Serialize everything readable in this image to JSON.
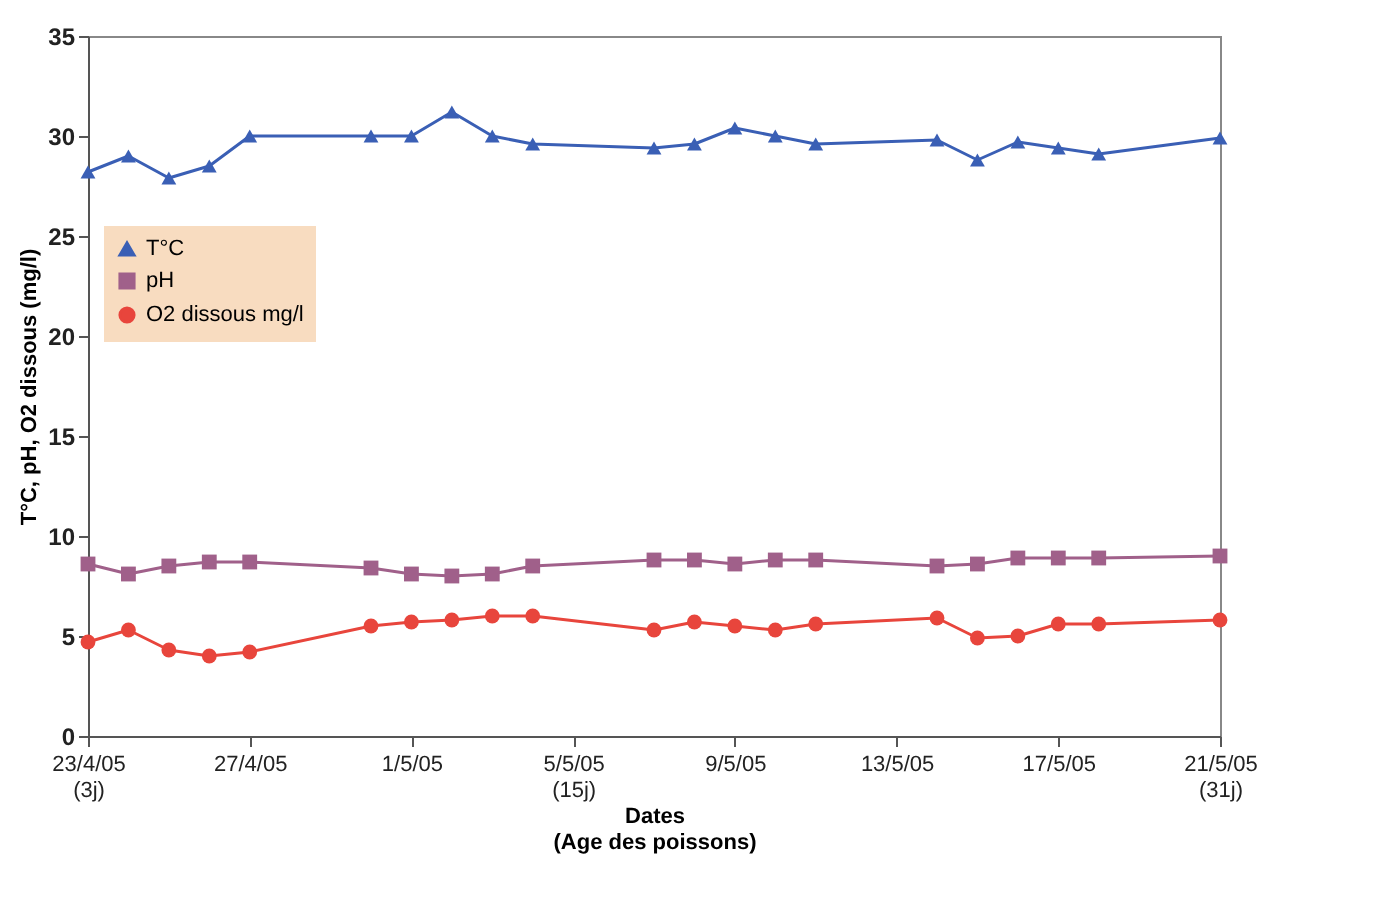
{
  "chart_data": {
    "type": "line",
    "xlabel": "Dates\n(Age des poissons)",
    "ylabel": "T°C, pH, O2 dissous (mg/l)",
    "x": [
      "--04-23",
      "--04-24",
      "--04-25",
      "--04-26",
      "--04-27",
      "--04-30",
      "--05-01",
      "--05-02",
      "--05-03",
      "--05-04",
      "--05-07",
      "--05-08",
      "--05-09",
      "--05-10",
      "--05-11",
      "--05-14",
      "--05-15",
      "--05-16",
      "--05-17",
      "--05-18",
      "--05-21"
    ],
    "series": [
      {
        "name": "T°C",
        "color": "#3a5fb5",
        "marker": "triangle",
        "values": [
          28.2,
          29,
          27.9,
          28.5,
          30,
          30,
          30,
          31.2,
          30,
          29.6,
          29.4,
          29.6,
          30.4,
          30,
          29.6,
          29.8,
          28.8,
          29.7,
          29.4,
          29.1,
          29.9
        ]
      },
      {
        "name": "pH",
        "color": "#a0608a",
        "marker": "square",
        "values": [
          8.6,
          8.1,
          8.5,
          8.7,
          8.7,
          8.4,
          8.1,
          8,
          8.1,
          8.5,
          8.8,
          8.8,
          8.6,
          8.8,
          8.8,
          8.5,
          8.6,
          8.9,
          8.9,
          8.9,
          9
        ]
      },
      {
        "name": "O2 dissous mg/l",
        "color": "#e8453c",
        "marker": "circle",
        "values": [
          4.7,
          5.3,
          4.3,
          4,
          4.2,
          5.5,
          5.7,
          5.8,
          6,
          6,
          5.3,
          5.7,
          5.5,
          5.3,
          5.6,
          5.9,
          4.9,
          5,
          5.6,
          5.6,
          5.8
        ]
      }
    ],
    "xlim": [
      "--04-23",
      "--05-21"
    ],
    "xticks": [
      {
        "value": "--04-23",
        "label": "23/4/05\n(3j)"
      },
      {
        "value": "--04-27",
        "label": "27/4/05"
      },
      {
        "value": "--05-01",
        "label": "1/5/05"
      },
      {
        "value": "--05-05",
        "label": "5/5/05\n(15j)"
      },
      {
        "value": "--05-09",
        "label": "9/5/05"
      },
      {
        "value": "--05-13",
        "label": "13/5/05"
      },
      {
        "value": "--05-17",
        "label": "17/5/05"
      },
      {
        "value": "--05-21",
        "label": "21/5/05\n(31j)"
      }
    ],
    "ylim": [
      0,
      35
    ],
    "yticks": [
      0,
      5,
      10,
      15,
      20,
      25,
      30,
      35
    ],
    "grid": false,
    "legend": "top left",
    "line_style": "solid"
  }
}
